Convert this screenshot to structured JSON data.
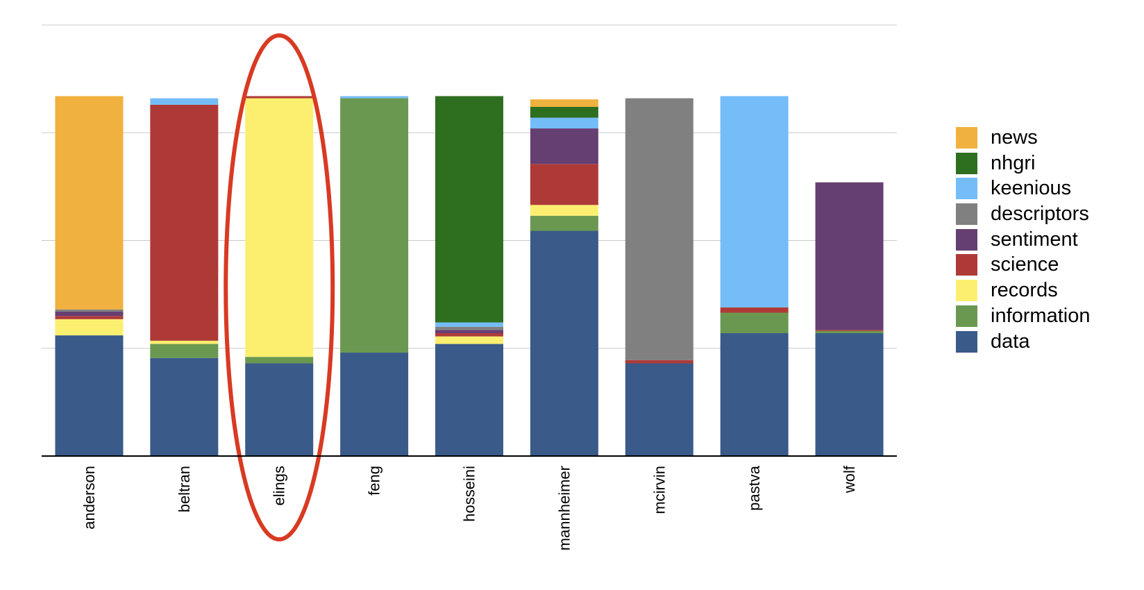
{
  "chart_data": {
    "type": "bar",
    "stacked": true,
    "categories": [
      "anderson",
      "beltran",
      "elings",
      "feng",
      "hosseini",
      "mannheimer",
      "mcirvin",
      "pastva",
      "wolf"
    ],
    "ylim": [
      0,
      4
    ],
    "grid": true,
    "legend_position": "right",
    "highlighted_category": "elings",
    "series": [
      {
        "name": "data",
        "color": "#3a5a8a",
        "values": [
          1.12,
          0.91,
          0.86,
          0.96,
          1.04,
          2.09,
          0.86,
          1.14,
          1.14
        ]
      },
      {
        "name": "information",
        "color": "#6a9850",
        "values": [
          0.0,
          0.13,
          0.06,
          2.36,
          0.0,
          0.14,
          0.0,
          0.19,
          0.02
        ]
      },
      {
        "name": "records",
        "color": "#fcef70",
        "values": [
          0.15,
          0.03,
          2.4,
          0.0,
          0.07,
          0.1,
          0.0,
          0.0,
          0.0
        ]
      },
      {
        "name": "science",
        "color": "#ae3a38",
        "values": [
          0.03,
          2.19,
          0.02,
          0.0,
          0.03,
          0.38,
          0.03,
          0.05,
          0.01
        ]
      },
      {
        "name": "sentiment",
        "color": "#663f72",
        "values": [
          0.04,
          0.0,
          0.0,
          0.0,
          0.03,
          0.33,
          0.0,
          0.0,
          1.37
        ]
      },
      {
        "name": "descriptors",
        "color": "#808080",
        "values": [
          0.02,
          0.0,
          0.0,
          0.0,
          0.03,
          0.0,
          2.43,
          0.0,
          0.0
        ]
      },
      {
        "name": "keenious",
        "color": "#74bdf8",
        "values": [
          0.0,
          0.06,
          0.0,
          0.02,
          0.04,
          0.1,
          0.0,
          1.96,
          0.0
        ]
      },
      {
        "name": "nhgri",
        "color": "#2e6e1f",
        "values": [
          0.0,
          0.0,
          0.0,
          0.0,
          2.1,
          0.1,
          0.0,
          0.0,
          0.0
        ]
      },
      {
        "name": "news",
        "color": "#f0b13e",
        "values": [
          1.98,
          0.0,
          0.0,
          0.0,
          0.0,
          0.07,
          0.0,
          0.0,
          0.0
        ]
      }
    ],
    "legend_order": [
      "news",
      "nhgri",
      "keenious",
      "descriptors",
      "sentiment",
      "science",
      "records",
      "information",
      "data"
    ],
    "highlight_color": "#d83a22",
    "title": "",
    "xlabel": "",
    "ylabel": ""
  }
}
